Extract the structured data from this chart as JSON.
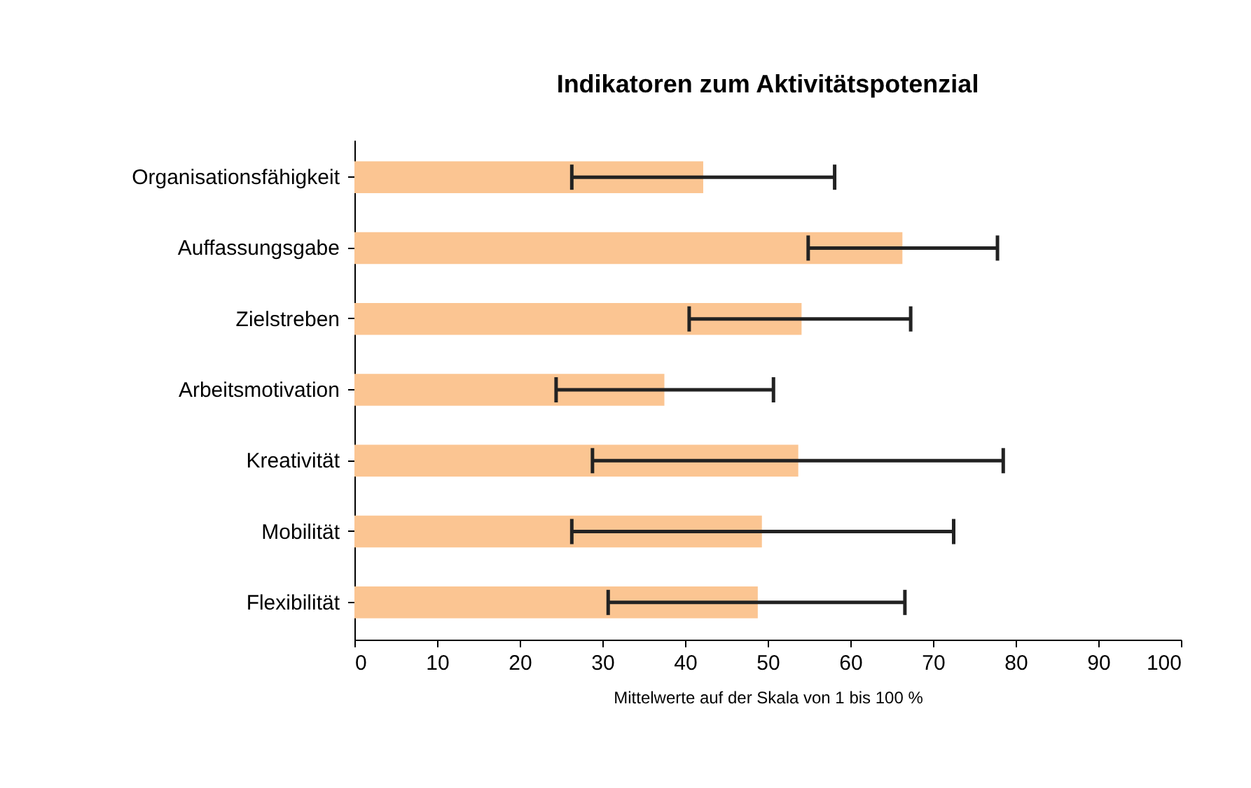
{
  "chart_data": {
    "type": "bar",
    "orientation": "horizontal",
    "title": "Indikatoren zum Aktivitätspotenzial",
    "xlabel": "Mittelwerte auf der Skala von 1 bis 100 %",
    "categories": [
      "Organisationsfähigkeit",
      "Auffassungsgabe",
      "Zielstreben",
      "Arbeitsmotivation",
      "Kreativität",
      "Mobilität",
      "Flexibilität"
    ],
    "values": [
      42.2,
      66.3,
      54.1,
      37.5,
      53.7,
      49.3,
      48.8
    ],
    "errors": [
      [
        26.3,
        58.1
      ],
      [
        54.9,
        77.8
      ],
      [
        40.5,
        67.3
      ],
      [
        24.4,
        50.7
      ],
      [
        28.8,
        78.5
      ],
      [
        26.3,
        72.5
      ],
      [
        30.7,
        66.6
      ]
    ],
    "color": "#fbc592",
    "xlim": [
      0,
      100
    ],
    "xticks": [
      0,
      10,
      20,
      30,
      40,
      50,
      60,
      70,
      80,
      90,
      100
    ],
    "grid": false
  }
}
